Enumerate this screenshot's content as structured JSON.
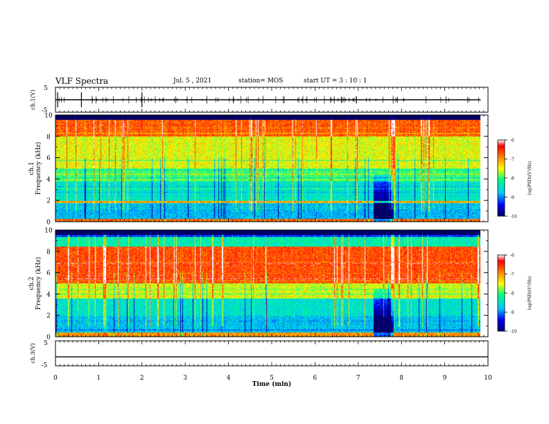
{
  "header": {
    "title": "VLF Spectra",
    "date": "Jul. 5 , 2021",
    "station": "station= MOS",
    "start": "start UT = 3 : 10 : 1"
  },
  "chart_data": [
    {
      "type": "line",
      "panel": "ch.1 waveform",
      "ylabel": "ch.1(V)",
      "xlim": [
        0,
        10
      ],
      "ylim": [
        -5,
        5
      ],
      "y_ticks": [
        "5",
        "-5"
      ],
      "series": [
        {
          "name": "ch.1",
          "x": [
            0,
            9.83
          ],
          "values": [
            0,
            0
          ]
        }
      ]
    },
    {
      "type": "heatmap",
      "panel": "ch.1 spectrogram",
      "ylabel": "ch.1",
      "ylabel2": "Frequency (kHz)",
      "xlim": [
        0,
        10
      ],
      "ylim": [
        0,
        10
      ],
      "y_ticks": [
        "0",
        "2",
        "4",
        "6",
        "8",
        "10"
      ],
      "colorbar": {
        "label": "log(PSD)(V²/Hz)",
        "range": [
          -10,
          -6
        ],
        "ticks": [
          "-6",
          "-7",
          "-8",
          "-9",
          "-10"
        ]
      },
      "data_end_min": 9.83,
      "gap_at_min": [
        7.35,
        7.8
      ]
    },
    {
      "type": "heatmap",
      "panel": "ch.2 spectrogram",
      "ylabel": "ch.2",
      "ylabel2": "Frequency (kHz)",
      "xlim": [
        0,
        10
      ],
      "ylim": [
        0,
        10
      ],
      "y_ticks": [
        "0",
        "2",
        "4",
        "6",
        "8",
        "10"
      ],
      "colorbar": {
        "label": "log(PSD)(V²/Hz)",
        "range": [
          -10,
          -6
        ],
        "ticks": [
          "-6",
          "-7",
          "-8",
          "-9",
          "-10"
        ]
      },
      "data_end_min": 9.83,
      "gap_at_min": [
        7.35,
        7.8
      ]
    },
    {
      "type": "line",
      "panel": "ch.3 waveform",
      "ylabel": "ch.3(V)",
      "xlim": [
        0,
        10
      ],
      "ylim": [
        -5,
        5
      ],
      "y_ticks": [
        "5",
        "-5"
      ],
      "series": [
        {
          "name": "ch.3",
          "x": [
            0,
            10
          ],
          "values": [
            -1.4,
            -1.4
          ]
        }
      ]
    }
  ],
  "xaxis": {
    "label": "Time (min)",
    "ticks": [
      "0",
      "1",
      "2",
      "3",
      "4",
      "5",
      "6",
      "7",
      "8",
      "9",
      "10"
    ]
  },
  "colors": {
    "heat": [
      "#000066",
      "#0000ff",
      "#00c8ff",
      "#00ff80",
      "#ffff00",
      "#ff8000",
      "#ff0000",
      "#ffffff"
    ]
  }
}
